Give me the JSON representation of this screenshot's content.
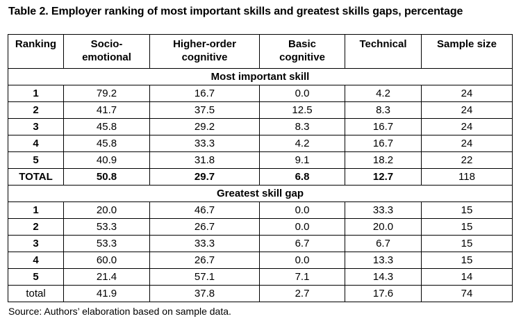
{
  "caption": "Table 2. Employer ranking of most important skills and greatest skills gaps, percentage",
  "headers": [
    "Ranking",
    "Socio-emotional",
    "Higher-order cognitive",
    "Basic cognitive",
    "Technical",
    "Sample size"
  ],
  "header_lines": [
    [
      "Ranking",
      ""
    ],
    [
      "Socio-",
      "emotional"
    ],
    [
      "Higher-order",
      "cognitive"
    ],
    [
      "Basic",
      "cognitive"
    ],
    [
      "Technical",
      ""
    ],
    [
      "Sample size",
      ""
    ]
  ],
  "section1": {
    "title": "Most important skill",
    "rows": [
      [
        "1",
        "79.2",
        "16.7",
        "0.0",
        "4.2",
        "24"
      ],
      [
        "2",
        "41.7",
        "37.5",
        "12.5",
        "8.3",
        "24"
      ],
      [
        "3",
        "45.8",
        "29.2",
        "8.3",
        "16.7",
        "24"
      ],
      [
        "4",
        "45.8",
        "33.3",
        "4.2",
        "16.7",
        "24"
      ],
      [
        "5",
        "40.9",
        "31.8",
        "9.1",
        "18.2",
        "22"
      ]
    ],
    "total": [
      "TOTAL",
      "50.8",
      "29.7",
      "6.8",
      "12.7",
      "118"
    ]
  },
  "section2": {
    "title": "Greatest skill gap",
    "rows": [
      [
        "1",
        "20.0",
        "46.7",
        "0.0",
        "33.3",
        "15"
      ],
      [
        "2",
        "53.3",
        "26.7",
        "0.0",
        "20.0",
        "15"
      ],
      [
        "3",
        "53.3",
        "33.3",
        "6.7",
        "6.7",
        "15"
      ],
      [
        "4",
        "60.0",
        "26.7",
        "0.0",
        "13.3",
        "15"
      ],
      [
        "5",
        "21.4",
        "57.1",
        "7.1",
        "14.3",
        "14"
      ]
    ],
    "total": [
      "total",
      "41.9",
      "37.8",
      "2.7",
      "17.6",
      "74"
    ]
  },
  "source": "Source: Authors’ elaboration based on sample data."
}
